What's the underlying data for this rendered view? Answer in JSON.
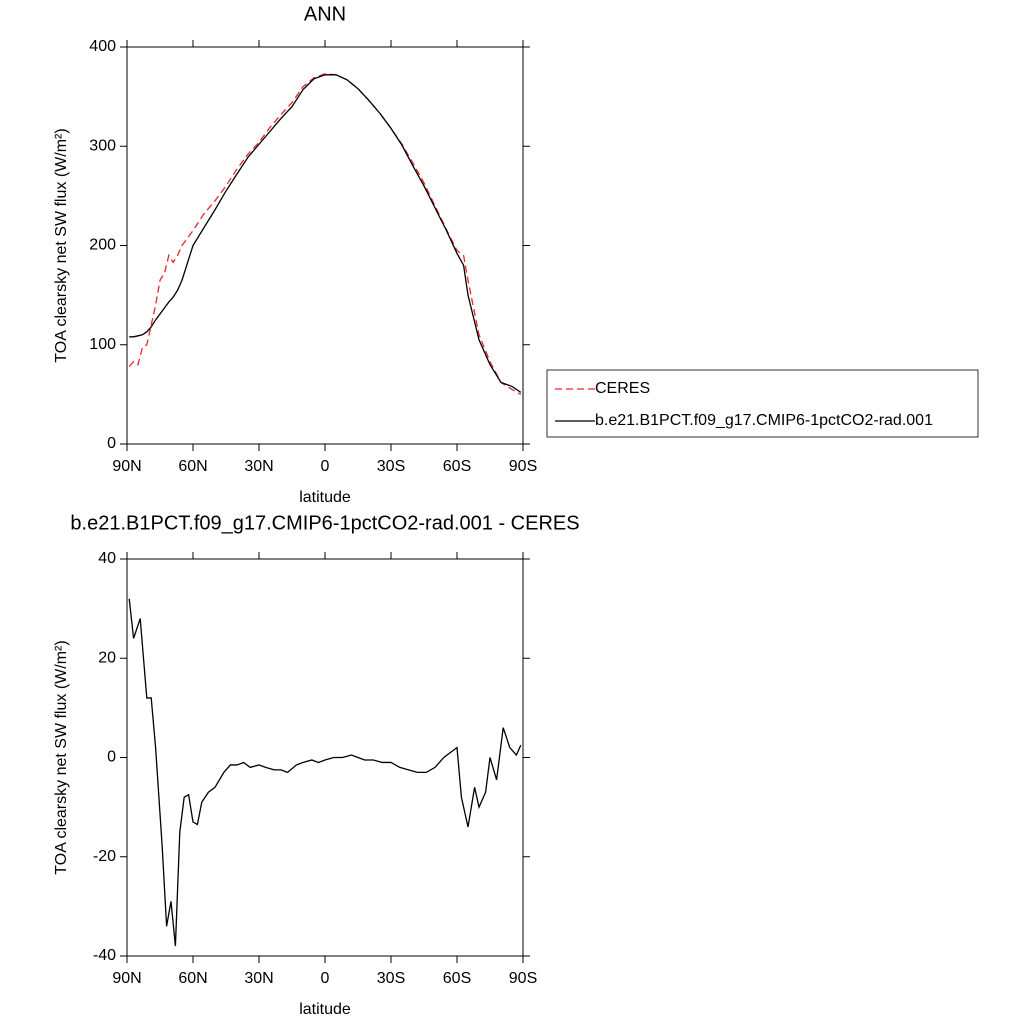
{
  "chart_data": [
    {
      "type": "line",
      "title": "ANN",
      "x_label": "latitude",
      "y_label": "TOA clearsky net SW flux (W/m²)",
      "x": [
        89,
        87,
        85,
        83,
        81,
        79,
        77,
        75,
        73,
        71,
        69,
        67,
        65,
        60,
        55,
        50,
        45,
        40,
        35,
        30,
        25,
        20,
        15,
        10,
        5,
        0,
        -5,
        -10,
        -15,
        -20,
        -25,
        -30,
        -35,
        -40,
        -45,
        -50,
        -55,
        -60,
        -63,
        -65,
        -70,
        -75,
        -80,
        -85,
        -89
      ],
      "series": [
        {
          "name": "CERES",
          "color": "#e8262b",
          "dash": true,
          "values": [
            78,
            83,
            80,
            97,
            100,
            120,
            140,
            165,
            172,
            190,
            183,
            190,
            200,
            215,
            232,
            245,
            260,
            277,
            292,
            304,
            319,
            332,
            344,
            360,
            369,
            373,
            372,
            367,
            358,
            346,
            333,
            318,
            302,
            283,
            263,
            240,
            217,
            195,
            190,
            165,
            110,
            83,
            62,
            55,
            50
          ]
        },
        {
          "name": "b.e21.B1PCT.f09_g17.CMIP6-1pctCO2-rad.001",
          "color": "#000000",
          "dash": false,
          "values": [
            108,
            108,
            109,
            110,
            113,
            118,
            125,
            131,
            137,
            143,
            148,
            155,
            165,
            200,
            218,
            236,
            255,
            272,
            289,
            302,
            315,
            328,
            340,
            357,
            368,
            372,
            372,
            367,
            358,
            346,
            333,
            318,
            301,
            280,
            260,
            238,
            216,
            192,
            180,
            150,
            105,
            80,
            62,
            58,
            52
          ]
        }
      ],
      "xlim": [
        90,
        -90
      ],
      "xticks": [
        {
          "value": 90,
          "label": "90N"
        },
        {
          "value": 60,
          "label": "60N"
        },
        {
          "value": 30,
          "label": "30N"
        },
        0,
        {
          "value": -30,
          "label": "30S"
        },
        {
          "value": -60,
          "label": "60S"
        },
        {
          "value": -90,
          "label": "90S"
        }
      ],
      "ylim": [
        0,
        400
      ],
      "yticks": [
        0,
        100,
        200,
        300,
        400
      ],
      "legend": "right"
    },
    {
      "type": "line",
      "title": "b.e21.B1PCT.f09_g17.CMIP6-1pctCO2-rad.001 - CERES",
      "x_label": "latitude",
      "y_label": "TOA clearsky net SW flux (W/m²)",
      "x": [
        89,
        87,
        84,
        81,
        79,
        77,
        74,
        72,
        70,
        68,
        66,
        64,
        62,
        60,
        58,
        56,
        53,
        50,
        46,
        43,
        40,
        37,
        34,
        30,
        27,
        23,
        20,
        17,
        13,
        10,
        6,
        3,
        0,
        -4,
        -8,
        -12,
        -15,
        -18,
        -22,
        -26,
        -30,
        -34,
        -38,
        -42,
        -46,
        -50,
        -54,
        -57,
        -60,
        -62,
        -65,
        -68,
        -70,
        -73,
        -75,
        -78,
        -81,
        -84,
        -87,
        -89
      ],
      "series": [
        {
          "color": "#000000",
          "dash": false,
          "values": [
            32,
            24,
            28,
            12,
            12,
            2,
            -18,
            -34,
            -29,
            -38,
            -15,
            -8,
            -7.5,
            -13,
            -13.5,
            -9,
            -7,
            -6,
            -3,
            -1.5,
            -1.5,
            -1,
            -2,
            -1.5,
            -2,
            -2.5,
            -2.5,
            -3,
            -1.5,
            -1,
            -0.5,
            -1,
            -0.5,
            0,
            0,
            0.5,
            0,
            -0.5,
            -0.5,
            -1,
            -1,
            -2,
            -2.5,
            -3,
            -3,
            -2,
            0,
            1,
            2,
            -8,
            -14,
            -6,
            -10,
            -7,
            0,
            -4.5,
            6,
            2,
            0.5,
            2.5
          ]
        }
      ],
      "xlim": [
        90,
        -90
      ],
      "xticks": [
        {
          "value": 90,
          "label": "90N"
        },
        {
          "value": 60,
          "label": "60N"
        },
        {
          "value": 30,
          "label": "30N"
        },
        0,
        {
          "value": -30,
          "label": "30S"
        },
        {
          "value": -60,
          "label": "60S"
        },
        {
          "value": -90,
          "label": "90S"
        }
      ],
      "ylim": [
        -40,
        40
      ],
      "yticks": [
        -40,
        -20,
        0,
        20,
        40
      ]
    }
  ]
}
